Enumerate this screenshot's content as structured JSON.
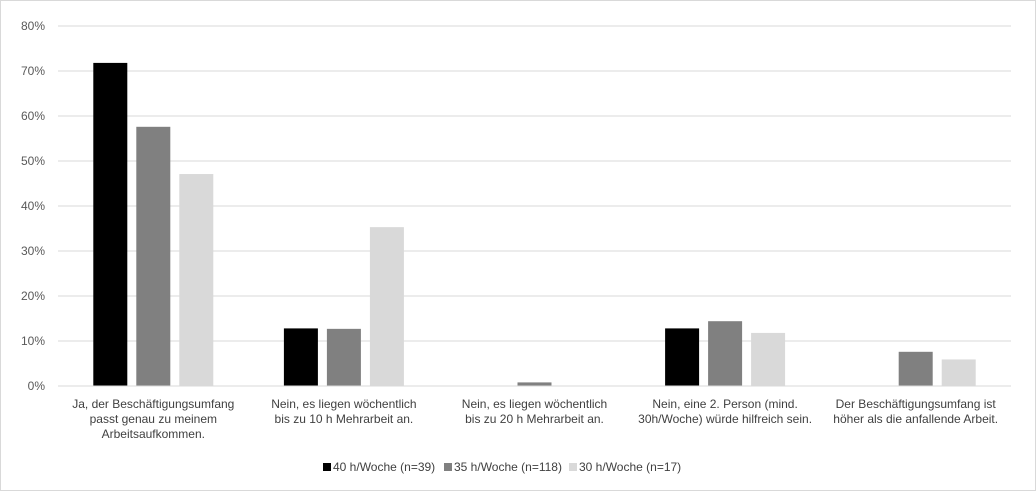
{
  "chart_data": {
    "type": "bar",
    "title": "",
    "xlabel": "",
    "ylabel": "",
    "ylim": [
      0,
      80
    ],
    "y_ticks": [
      "0%",
      "10%",
      "20%",
      "30%",
      "40%",
      "50%",
      "60%",
      "70%",
      "80%"
    ],
    "grid": true,
    "legend_position": "bottom",
    "categories": [
      [
        "Ja, der Beschäftigungsumfang",
        "passt genau zu meinem",
        "Arbeitsaufkommen."
      ],
      [
        "Nein, es liegen wöchentlich",
        "bis zu 10 h Mehrarbeit an."
      ],
      [
        "Nein, es liegen wöchentlich",
        "bis zu 20 h Mehrarbeit an."
      ],
      [
        "Nein, eine 2. Person (mind.",
        "30h/Woche) würde hilfreich sein."
      ],
      [
        "Der Beschäftigungsumfang ist",
        "höher als die anfallende Arbeit."
      ]
    ],
    "series": [
      {
        "name": "40 h/Woche (n=39)",
        "color": "#000000",
        "values": [
          71.8,
          12.8,
          0,
          12.8,
          0
        ]
      },
      {
        "name": "35 h/Woche (n=118)",
        "color": "#808080",
        "values": [
          57.6,
          12.7,
          0.8,
          14.4,
          7.6
        ]
      },
      {
        "name": "30 h/Woche (n=17)",
        "color": "#d9d9d9",
        "values": [
          47.1,
          35.3,
          0,
          11.8,
          5.9
        ]
      }
    ]
  }
}
